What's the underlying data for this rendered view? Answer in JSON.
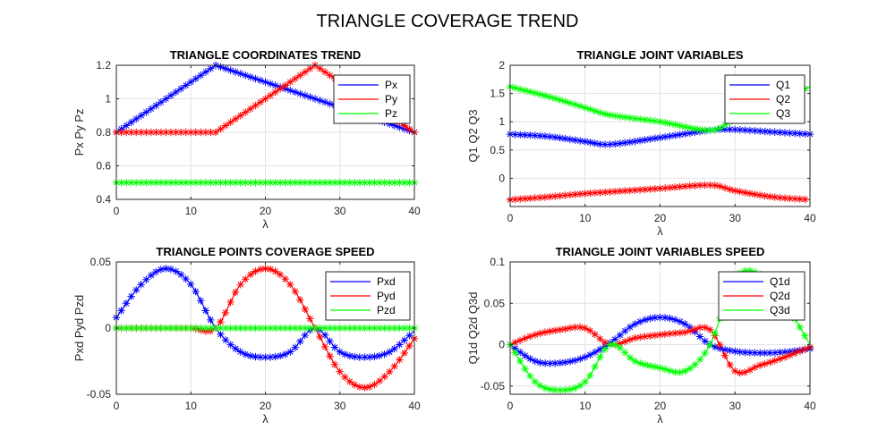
{
  "figure_title": "TRIANGLE COVERAGE TREND",
  "chart_data": [
    {
      "type": "line",
      "title": "TRIANGLE COORDINATES TREND",
      "xlabel": "λ",
      "ylabel": "Px  Py  Pz",
      "xlim": [
        0,
        40
      ],
      "ylim": [
        0.4,
        1.2
      ],
      "xticks": [
        0,
        10,
        20,
        30,
        40
      ],
      "yticks": [
        0.4,
        0.6,
        0.8,
        1,
        1.2
      ],
      "ytick_labels": [
        "0.4",
        "0.6",
        "0.8",
        "1",
        "1.2"
      ],
      "grid": true,
      "legend_position": "top-right",
      "marker": "asterisk",
      "x": [
        0,
        13.33,
        26.67,
        40
      ],
      "series": [
        {
          "name": "Px",
          "color": "#0000ff",
          "values": [
            0.8,
            1.2,
            1.0,
            0.8
          ]
        },
        {
          "name": "Py",
          "color": "#ff0000",
          "values": [
            0.8,
            0.8,
            1.2,
            0.8
          ]
        },
        {
          "name": "Pz",
          "color": "#00ff00",
          "values": [
            0.5,
            0.5,
            0.5,
            0.5
          ]
        }
      ]
    },
    {
      "type": "line",
      "title": "TRIANGLE JOINT VARIABLES",
      "xlabel": "λ",
      "ylabel": "Q1  Q2  Q3",
      "xlim": [
        0,
        40
      ],
      "ylim": [
        -0.5,
        2
      ],
      "xticks": [
        0,
        10,
        20,
        30,
        40
      ],
      "yticks": [
        0,
        0.5,
        1,
        1.5,
        2
      ],
      "ytick_labels": [
        "0",
        "0.5",
        "1",
        "1.5",
        "2"
      ],
      "grid": true,
      "legend_position": "top-right",
      "marker": "asterisk",
      "x": [
        0,
        5,
        10,
        13.33,
        20,
        26.67,
        30,
        35,
        40
      ],
      "series": [
        {
          "name": "Q1",
          "color": "#0000ff",
          "values": [
            0.78,
            0.74,
            0.65,
            0.6,
            0.72,
            0.85,
            0.86,
            0.82,
            0.78
          ]
        },
        {
          "name": "Q2",
          "color": "#ff0000",
          "values": [
            -0.38,
            -0.33,
            -0.27,
            -0.24,
            -0.18,
            -0.12,
            -0.22,
            -0.33,
            -0.38
          ]
        },
        {
          "name": "Q3",
          "color": "#00ff00",
          "values": [
            1.62,
            1.45,
            1.25,
            1.12,
            1.0,
            0.85,
            1.05,
            1.35,
            1.62
          ]
        }
      ]
    },
    {
      "type": "line",
      "title": "TRIANGLE POINTS COVERAGE SPEED",
      "xlabel": "λ",
      "ylabel": "Pxd  Pyd  Pzd",
      "xlim": [
        0,
        40
      ],
      "ylim": [
        -0.05,
        0.05
      ],
      "xticks": [
        0,
        10,
        20,
        30,
        40
      ],
      "yticks": [
        -0.05,
        0,
        0.05
      ],
      "ytick_labels": [
        "-0.05",
        "0",
        "0.05"
      ],
      "grid": true,
      "legend_position": "top-right",
      "marker": "asterisk",
      "x": [
        0,
        3.33,
        6.67,
        10,
        13.33,
        16.67,
        20,
        23.33,
        26.67,
        30,
        33.33,
        36.67,
        40
      ],
      "series": [
        {
          "name": "Pxd",
          "color": "#0000ff",
          "values": [
            0.008,
            0.033,
            0.045,
            0.033,
            0.0,
            -0.018,
            -0.022,
            -0.018,
            0.0,
            -0.018,
            -0.022,
            -0.018,
            -0.002
          ]
        },
        {
          "name": "Pyd",
          "color": "#ff0000",
          "values": [
            0.0,
            0.0,
            0.0,
            0.0,
            0.0,
            0.033,
            0.045,
            0.033,
            0.0,
            -0.033,
            -0.045,
            -0.033,
            -0.008
          ]
        },
        {
          "name": "Pzd",
          "color": "#00ff00",
          "values": [
            0,
            0,
            0,
            0,
            0,
            0,
            0,
            0,
            0,
            0,
            0,
            0,
            0
          ]
        }
      ]
    },
    {
      "type": "line",
      "title": "TRIANGLE JOINT VARIABLES SPEED",
      "xlabel": "λ",
      "ylabel": "Q1d  Q2d  Q3d",
      "xlim": [
        0,
        40
      ],
      "ylim": [
        -0.06,
        0.1
      ],
      "xticks": [
        0,
        10,
        20,
        30,
        40
      ],
      "yticks": [
        -0.05,
        0,
        0.05,
        0.1
      ],
      "ytick_labels": [
        "-0.05",
        "0",
        "0.05",
        "0.1"
      ],
      "grid": true,
      "legend_position": "top-right",
      "marker": "asterisk",
      "x": [
        0,
        3.33,
        6.67,
        10,
        13.33,
        16.67,
        20,
        23.33,
        26.67,
        30,
        33.33,
        36.67,
        40
      ],
      "series": [
        {
          "name": "Q1d",
          "color": "#0000ff",
          "values": [
            0.0,
            -0.02,
            -0.022,
            -0.015,
            0.002,
            0.025,
            0.033,
            0.025,
            0.0,
            -0.008,
            -0.01,
            -0.009,
            -0.005
          ]
        },
        {
          "name": "Q2d",
          "color": "#ff0000",
          "values": [
            0.0,
            0.012,
            0.018,
            0.02,
            0.0,
            0.008,
            0.012,
            0.015,
            0.018,
            -0.032,
            -0.025,
            -0.015,
            -0.003
          ]
        },
        {
          "name": "Q3d",
          "color": "#00ff00",
          "values": [
            0.0,
            -0.045,
            -0.055,
            -0.045,
            0.0,
            -0.02,
            -0.028,
            -0.032,
            0.0,
            0.08,
            0.085,
            0.05,
            0.0
          ]
        }
      ]
    }
  ]
}
